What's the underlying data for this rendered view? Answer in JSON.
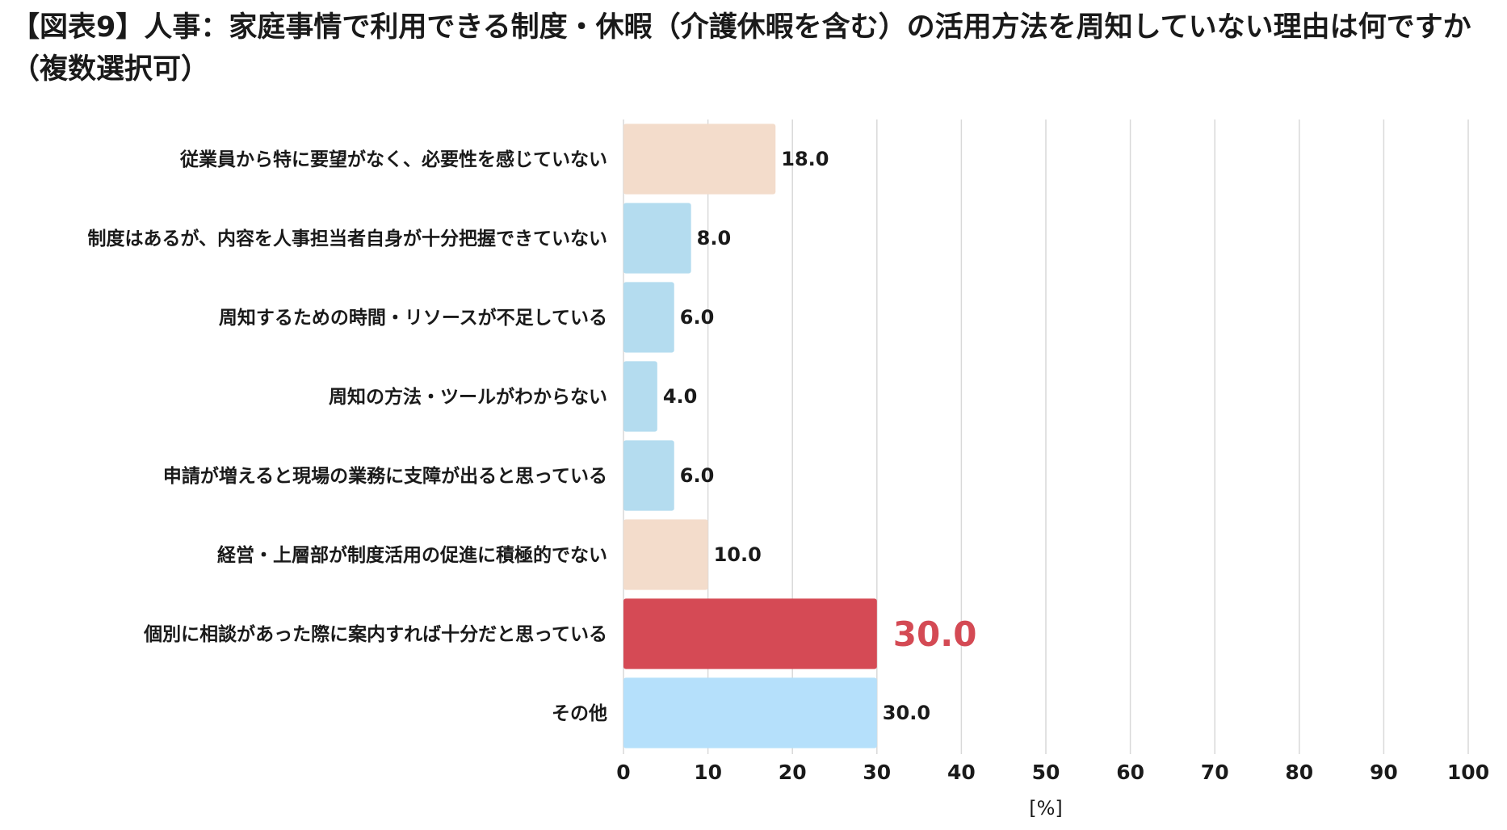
{
  "chart_data": {
    "type": "bar",
    "orientation": "horizontal",
    "title": "【図表9】人事：家庭事情で利用できる制度・休暇（介護休暇を含む）の活用方法を周知していない理由は何ですか（複数選択可）",
    "xlabel": "[%]",
    "xlim": [
      0,
      100
    ],
    "xticks": [
      0,
      10,
      20,
      30,
      40,
      50,
      60,
      70,
      80,
      90,
      100
    ],
    "grid": true,
    "categories": [
      "従業員から特に要望がなく、必要性を感じていない",
      "制度はあるが、内容を人事担当者自身が十分把握できていない",
      "周知するための時間・リソースが不足している",
      "周知の方法・ツールがわからない",
      "申請が増えると現場の業務に支障が出ると思っている",
      "経営・上層部が制度活用の促進に積極的でない",
      "個別に相談があった際に案内すれば十分だと思っている",
      "その他"
    ],
    "values": [
      18.0,
      8.0,
      6.0,
      4.0,
      6.0,
      10.0,
      30.0,
      30.0
    ],
    "value_labels": [
      "18.0",
      "8.0",
      "6.0",
      "4.0",
      "6.0",
      "10.0",
      "30.0",
      "30.0"
    ],
    "bar_colors": [
      "#f3dccb",
      "#b4dcef",
      "#b4dcef",
      "#b4dcef",
      "#b4dcef",
      "#f3dccb",
      "#d54a55",
      "#b5e0fb"
    ],
    "highlight_index": 6,
    "highlight_color": "#d44a54",
    "grid_color": "#d9d9d9"
  }
}
